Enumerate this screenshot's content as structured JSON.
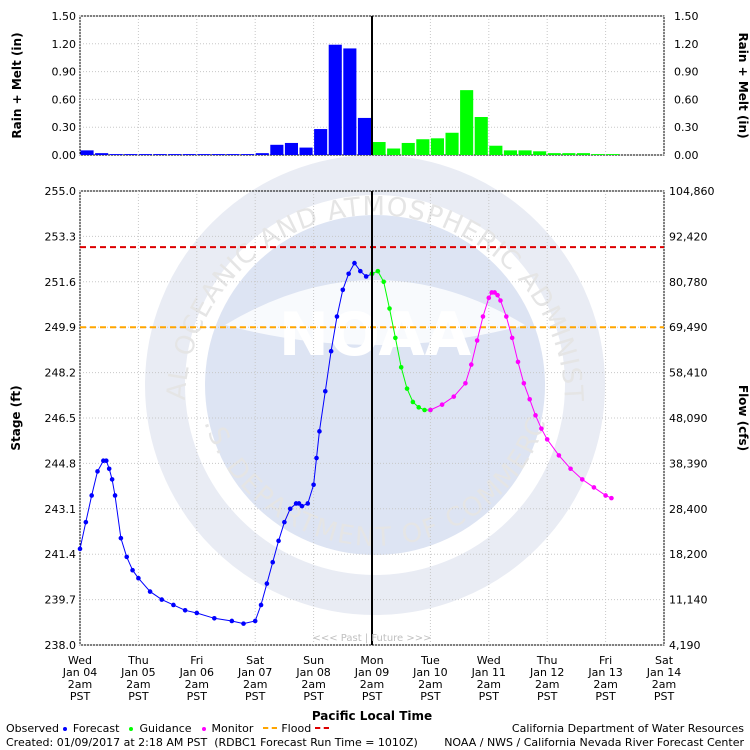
{
  "chart_data": [
    {
      "type": "bar",
      "ylabel": "Rain + Melt (in)",
      "ylim": [
        0,
        1.5
      ],
      "yticks": [
        "1.50",
        "1.20",
        "0.90",
        "0.60",
        "0.30",
        "0.00"
      ],
      "series": [
        {
          "name": "Observed",
          "color": "#0000ff",
          "values": [
            0.05,
            0.02,
            0.01,
            0.01,
            0.01,
            0.01,
            0.01,
            0.01,
            0.01,
            0.01,
            0.01,
            0.01,
            0.02,
            0.11,
            0.13,
            0.08,
            0.28,
            1.19,
            1.15,
            0.4
          ]
        },
        {
          "name": "Forecast",
          "color": "#00ff00",
          "values": [
            0.14,
            0.07,
            0.13,
            0.17,
            0.18,
            0.24,
            0.7,
            0.41,
            0.1,
            0.05,
            0.05,
            0.04,
            0.02,
            0.02,
            0.02,
            0.01,
            0.01
          ]
        }
      ],
      "bar_start_days": [
        0,
        0.25,
        0.5,
        0.75,
        1,
        1.25,
        1.5,
        1.75,
        2,
        2.25,
        2.5,
        2.75,
        3,
        3.25,
        3.5,
        3.75,
        4,
        4.25,
        4.5,
        4.75
      ],
      "bar_start_days_fcst": [
        5,
        5.25,
        5.5,
        5.75,
        6,
        6.25,
        6.5,
        6.75,
        7,
        7.25,
        7.5,
        7.75,
        8,
        8.25,
        8.5,
        8.75,
        9
      ]
    },
    {
      "type": "line",
      "ylabel": "Stage (ft)",
      "y2label": "Flow (cfs)",
      "xlabel": "Pacific Local Time",
      "ylim": [
        238.0,
        255.0
      ],
      "yticks": [
        "255.0",
        "253.3",
        "251.6",
        "249.9",
        "248.2",
        "246.5",
        "244.8",
        "243.1",
        "241.4",
        "239.7",
        "238.0"
      ],
      "y2ticks": [
        "104,860",
        "92,420",
        "80,780",
        "69,490",
        "58,410",
        "48,090",
        "38,390",
        "28,400",
        "18,200",
        "11,140",
        "4,190"
      ],
      "xticks": [
        {
          "day": "Wed",
          "date": "Jan 04",
          "time": "2am",
          "tz": "PST"
        },
        {
          "day": "Thu",
          "date": "Jan 05",
          "time": "2am",
          "tz": "PST"
        },
        {
          "day": "Fri",
          "date": "Jan 06",
          "time": "2am",
          "tz": "PST"
        },
        {
          "day": "Sat",
          "date": "Jan 07",
          "time": "2am",
          "tz": "PST"
        },
        {
          "day": "Sun",
          "date": "Jan 08",
          "time": "2am",
          "tz": "PST"
        },
        {
          "day": "Mon",
          "date": "Jan 09",
          "time": "2am",
          "tz": "PST"
        },
        {
          "day": "Tue",
          "date": "Jan 10",
          "time": "2am",
          "tz": "PST"
        },
        {
          "day": "Wed",
          "date": "Jan 11",
          "time": "2am",
          "tz": "PST"
        },
        {
          "day": "Thu",
          "date": "Jan 12",
          "time": "2am",
          "tz": "PST"
        },
        {
          "day": "Fri",
          "date": "Jan 13",
          "time": "2am",
          "tz": "PST"
        },
        {
          "day": "Sat",
          "date": "Jan 14",
          "time": "2am",
          "tz": "PST"
        }
      ],
      "xlim_days": [
        0,
        10
      ],
      "now_day": 5.0,
      "monitor_level": 249.9,
      "flood_level": 252.9,
      "past_future_label": "<<< Past  |  Future >>>",
      "series": [
        {
          "name": "Observed",
          "color": "#0000ff",
          "x": [
            0,
            0.1,
            0.2,
            0.3,
            0.4,
            0.45,
            0.5,
            0.55,
            0.6,
            0.7,
            0.8,
            0.9,
            1.0,
            1.2,
            1.4,
            1.6,
            1.8,
            2.0,
            2.3,
            2.6,
            2.8,
            3.0,
            3.1,
            3.2,
            3.3,
            3.4,
            3.5,
            3.6,
            3.7,
            3.75,
            3.8,
            3.9,
            4.0,
            4.05,
            4.1,
            4.2,
            4.3,
            4.4,
            4.5,
            4.6,
            4.7,
            4.8,
            4.9,
            5.0
          ],
          "y": [
            241.6,
            242.6,
            243.6,
            244.5,
            244.9,
            244.9,
            244.6,
            244.2,
            243.6,
            242.0,
            241.3,
            240.8,
            240.5,
            240.0,
            239.7,
            239.5,
            239.3,
            239.2,
            239.0,
            238.9,
            238.8,
            238.9,
            239.5,
            240.3,
            241.1,
            241.9,
            242.6,
            243.1,
            243.3,
            243.3,
            243.2,
            243.3,
            244.0,
            245.0,
            246.0,
            247.5,
            249.0,
            250.3,
            251.3,
            251.9,
            252.3,
            252.0,
            251.8,
            251.9
          ]
        },
        {
          "name": "Guidance",
          "color": "#00ff00",
          "x": [
            5.0,
            5.1,
            5.2,
            5.3,
            5.4,
            5.5,
            5.6,
            5.7,
            5.8,
            5.9,
            6.0
          ],
          "y": [
            251.9,
            252.0,
            251.6,
            250.6,
            249.5,
            248.4,
            247.6,
            247.1,
            246.9,
            246.8,
            246.8
          ]
        },
        {
          "name": "Monitor",
          "color": "#ff00ff",
          "x": [
            6.0,
            6.2,
            6.4,
            6.6,
            6.7,
            6.8,
            6.9,
            7.0,
            7.05,
            7.1,
            7.15,
            7.2,
            7.3,
            7.4,
            7.5,
            7.6,
            7.7,
            7.8,
            7.9,
            8.0,
            8.2,
            8.4,
            8.6,
            8.8,
            9.0,
            9.1
          ],
          "y": [
            246.8,
            247.0,
            247.3,
            247.8,
            248.5,
            249.4,
            250.3,
            251.0,
            251.2,
            251.2,
            251.1,
            250.9,
            250.3,
            249.5,
            248.6,
            247.8,
            247.2,
            246.6,
            246.1,
            245.7,
            245.1,
            244.6,
            244.2,
            243.9,
            243.6,
            243.5
          ]
        }
      ]
    }
  ],
  "legend": {
    "observed": "Observed",
    "forecast": "Forecast",
    "guidance": "Guidance",
    "monitor": "Monitor",
    "flood": "Flood"
  },
  "footer": {
    "created": "Created: 01/09/2017 at 2:18 AM PST",
    "run": "(RDBC1 Forecast Run Time = 1010Z)",
    "agency1": "California Department of Water Resources",
    "agency2": "NOAA / NWS / California Nevada River Forecast Center"
  },
  "watermark": {
    "text_top": "NATIONAL OCEANIC AND ATMOSPHERIC ADMINISTRATION",
    "text_bottom": "U.S. DEPARTMENT OF COMMERCE",
    "logo": "NOAA"
  }
}
